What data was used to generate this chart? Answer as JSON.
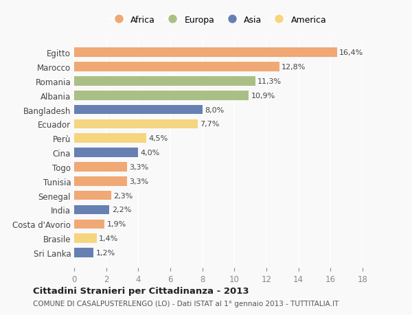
{
  "countries": [
    "Egitto",
    "Marocco",
    "Romania",
    "Albania",
    "Bangladesh",
    "Ecuador",
    "Perù",
    "Cina",
    "Togo",
    "Tunisia",
    "Senegal",
    "India",
    "Costa d'Avorio",
    "Brasile",
    "Sri Lanka"
  ],
  "values": [
    16.4,
    12.8,
    11.3,
    10.9,
    8.0,
    7.7,
    4.5,
    4.0,
    3.3,
    3.3,
    2.3,
    2.2,
    1.9,
    1.4,
    1.2
  ],
  "labels": [
    "16,4%",
    "12,8%",
    "11,3%",
    "10,9%",
    "8,0%",
    "7,7%",
    "4,5%",
    "4,0%",
    "3,3%",
    "3,3%",
    "2,3%",
    "2,2%",
    "1,9%",
    "1,4%",
    "1,2%"
  ],
  "continents": [
    "Africa",
    "Africa",
    "Europa",
    "Europa",
    "Asia",
    "America",
    "America",
    "Asia",
    "Africa",
    "Africa",
    "Africa",
    "Asia",
    "Africa",
    "America",
    "Asia"
  ],
  "colors": {
    "Africa": "#F0A875",
    "Europa": "#AABF85",
    "Asia": "#6680B3",
    "America": "#F5D580"
  },
  "legend_order": [
    "Africa",
    "Europa",
    "Asia",
    "America"
  ],
  "title": "Cittadini Stranieri per Cittadinanza - 2013",
  "subtitle": "COMUNE DI CASALPUSTERLENGO (LO) - Dati ISTAT al 1° gennaio 2013 - TUTTITALIA.IT",
  "xlim": [
    0,
    18
  ],
  "xticks": [
    0,
    2,
    4,
    6,
    8,
    10,
    12,
    14,
    16,
    18
  ],
  "background_color": "#f9f9f9",
  "grid_color": "#ffffff",
  "bar_height": 0.65
}
